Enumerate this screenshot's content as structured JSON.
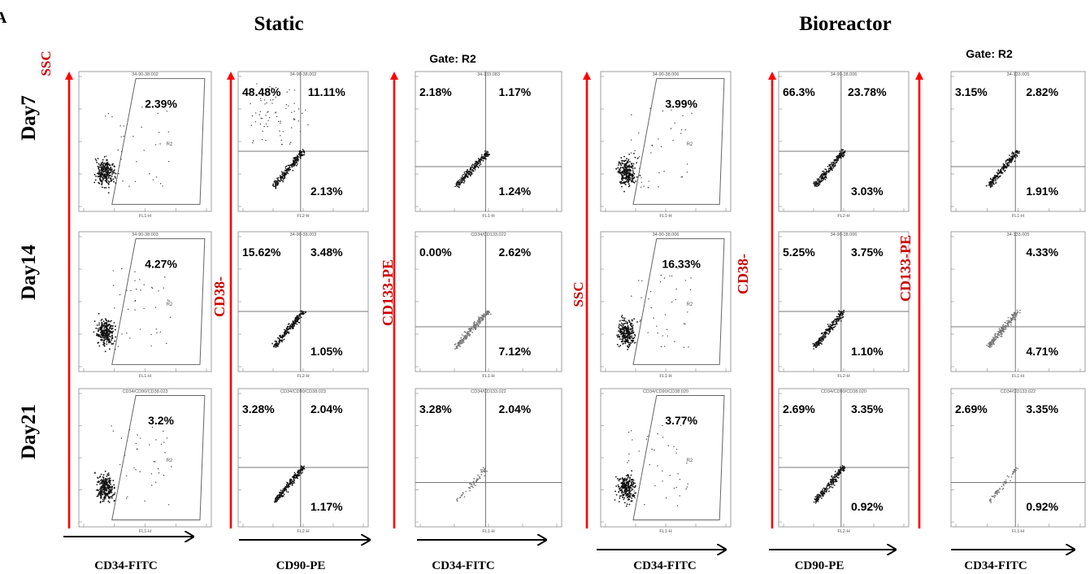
{
  "figure": {
    "corner_label": "A",
    "groups": [
      "Static",
      "Bioreactor"
    ],
    "rows": [
      "Day7",
      "Day14",
      "Day21"
    ],
    "gate_label": "Gate: R2",
    "gate_region": "R2",
    "channels": [
      "FL1-H",
      "FL2-H",
      "FL3-H"
    ],
    "colors": {
      "axis_arrow": "#ff0000",
      "axis_label": "#cc0000",
      "text": "#000000",
      "dots": "#000000"
    }
  },
  "chart_data": [
    {
      "type": "scatter",
      "group": "Static",
      "panel": "SSC vs CD34-FITC",
      "xlabel": "CD34-FITC",
      "ylabel": "SSC",
      "rows": [
        {
          "day": "Day7",
          "sample_id": "34-90-38.002",
          "gate": "R2",
          "R2_percent": "2.39%"
        },
        {
          "day": "Day14",
          "sample_id": "34-90-38.003",
          "gate": "R2",
          "R2_percent": "4.27%"
        },
        {
          "day": "Day21",
          "sample_id": "CD34/CD90/CD38.023",
          "gate": "R2",
          "R2_percent": "3.2%"
        }
      ]
    },
    {
      "type": "scatter",
      "group": "Static",
      "panel": "CD38-PerCP vs CD90-PE",
      "xlabel": "CD90-PE",
      "ylabel": "CD38-",
      "rows": [
        {
          "day": "Day7",
          "sample_id": "34-90-38.002",
          "quadrants": {
            "UL": "48.48%",
            "UR": "11.11%",
            "LL": "",
            "LR": "2.13%"
          }
        },
        {
          "day": "Day14",
          "sample_id": "34-90-38.003",
          "quadrants": {
            "UL": "15.62%",
            "UR": "3.48%",
            "LL": "",
            "LR": "1.05%"
          }
        },
        {
          "day": "Day21",
          "sample_id": "CD34/CD90/CD38.023",
          "quadrants": {
            "UL": "3.28%",
            "UR": "2.04%",
            "LL": "",
            "LR": "1.17%"
          }
        }
      ]
    },
    {
      "type": "scatter",
      "group": "Static",
      "panel": "CD133-PE vs CD34-FITC",
      "xlabel": "CD34-FITC",
      "ylabel": "CD133-PE",
      "rows": [
        {
          "day": "Day7",
          "sample_id": "34-133.083",
          "quadrants": {
            "UL": "2.18%",
            "UR": "1.17%",
            "LL": "",
            "LR": "1.24%"
          }
        },
        {
          "day": "Day14",
          "sample_id": "CD34/CD133.022",
          "quadrants": {
            "UL": "0.00%",
            "UR": "2.62%",
            "LL": "",
            "LR": "7.12%"
          }
        },
        {
          "day": "Day21",
          "sample_id": "CD34/CD133.022",
          "quadrants": {
            "UL": "3.28%",
            "UR": "2.04%",
            "LL": "",
            "LR": ""
          }
        }
      ]
    },
    {
      "type": "scatter",
      "group": "Bioreactor",
      "panel": "SSC vs CD34-FITC",
      "xlabel": "CD34-FITC",
      "ylabel": "SSC",
      "rows": [
        {
          "day": "Day7",
          "sample_id": "34-90-38.006",
          "gate": "R2",
          "R2_percent": "3.99%"
        },
        {
          "day": "Day14",
          "sample_id": "34-90-38.006",
          "gate": "R2",
          "R2_percent": "16.33%"
        },
        {
          "day": "Day21",
          "sample_id": "CD34/CD90/CD38.020",
          "gate": "R2",
          "R2_percent": "3.77%"
        }
      ]
    },
    {
      "type": "scatter",
      "group": "Bioreactor",
      "panel": "CD38-PerCP vs CD90-PE",
      "xlabel": "CD90-PE",
      "ylabel": "CD38-",
      "rows": [
        {
          "day": "Day7",
          "sample_id": "34-90-38.006",
          "quadrants": {
            "UL": "66.3%",
            "UR": "23.78%",
            "LL": "",
            "LR": "3.03%"
          }
        },
        {
          "day": "Day14",
          "sample_id": "34-90-38.006",
          "quadrants": {
            "UL": "5.25%",
            "UR": "3.75%",
            "LL": "",
            "LR": "1.10%"
          }
        },
        {
          "day": "Day21",
          "sample_id": "CD34/CD90/CD38.020",
          "quadrants": {
            "UL": "2.69%",
            "UR": "3.35%",
            "LL": "",
            "LR": "0.92%"
          }
        }
      ]
    },
    {
      "type": "scatter",
      "group": "Bioreactor",
      "panel": "CD133-PE vs CD34-FITC",
      "xlabel": "CD34-FITC",
      "ylabel": "CD133-PE",
      "rows": [
        {
          "day": "Day7",
          "sample_id": "34-133.005",
          "quadrants": {
            "UL": "3.15%",
            "UR": "2.82%",
            "LL": "",
            "LR": "1.91%"
          }
        },
        {
          "day": "Day14",
          "sample_id": "34-133.005",
          "quadrants": {
            "UL": "",
            "UR": "4.33%",
            "LL": "",
            "LR": "4.71%"
          }
        },
        {
          "day": "Day21",
          "sample_id": "CD34/CD133.022",
          "quadrants": {
            "UL": "2.69%",
            "UR": "3.35%",
            "LL": "",
            "LR": "0.92%"
          }
        }
      ]
    }
  ]
}
